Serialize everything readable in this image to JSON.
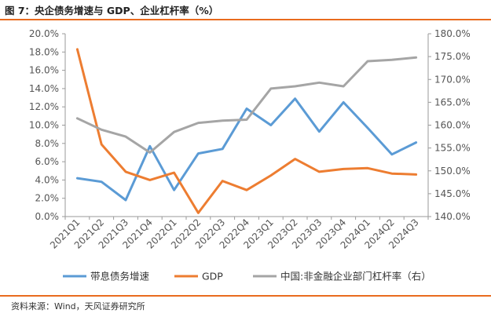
{
  "title": "图 7：央企债务增速与 GDP、企业杠杆率（%）",
  "source": "资料来源：Wind，天风证券研究所",
  "colors": {
    "rule": "#e96b1e",
    "series": [
      "#5b9bd5",
      "#ed7d31",
      "#a5a5a5"
    ]
  },
  "chart_data": {
    "type": "line",
    "categories": [
      "2021Q1",
      "2021Q2",
      "2021Q3",
      "2021Q4",
      "2022Q1",
      "2022Q2",
      "2022Q3",
      "2022Q4",
      "2023Q1",
      "2023Q2",
      "2023Q3",
      "2023Q4",
      "2024Q1",
      "2024Q2",
      "2024Q3"
    ],
    "y_left": {
      "min": 0,
      "max": 20,
      "step": 2,
      "format": "percent1",
      "ticks": [
        "0.0%",
        "2.0%",
        "4.0%",
        "6.0%",
        "8.0%",
        "10.0%",
        "12.0%",
        "14.0%",
        "16.0%",
        "18.0%",
        "20.0%"
      ]
    },
    "y_right": {
      "min": 140,
      "max": 180,
      "step": 5,
      "format": "percent1",
      "ticks": [
        "140.0%",
        "145.0%",
        "150.0%",
        "155.0%",
        "160.0%",
        "165.0%",
        "170.0%",
        "175.0%",
        "180.0%"
      ]
    },
    "grid": false,
    "legend_position": "bottom",
    "series": [
      {
        "name": "带息债务增速",
        "axis": "left",
        "color": "#5b9bd5",
        "values": [
          4.2,
          3.8,
          1.8,
          7.7,
          2.9,
          6.9,
          7.4,
          11.8,
          10.0,
          12.9,
          9.3,
          12.5,
          9.7,
          6.8,
          8.1
        ]
      },
      {
        "name": "GDP",
        "axis": "left",
        "color": "#ed7d31",
        "values": [
          18.3,
          7.9,
          4.9,
          4.0,
          4.8,
          0.4,
          3.9,
          2.9,
          4.5,
          6.3,
          4.9,
          5.2,
          5.3,
          4.7,
          4.6
        ]
      },
      {
        "name": "中国:非金融企业部门杠杆率（右）",
        "axis": "right",
        "color": "#a5a5a5",
        "values": [
          161.5,
          159.0,
          157.5,
          154.0,
          158.5,
          160.5,
          161.0,
          161.2,
          168.0,
          168.5,
          169.3,
          168.5,
          174.0,
          174.3,
          174.8
        ]
      }
    ]
  }
}
